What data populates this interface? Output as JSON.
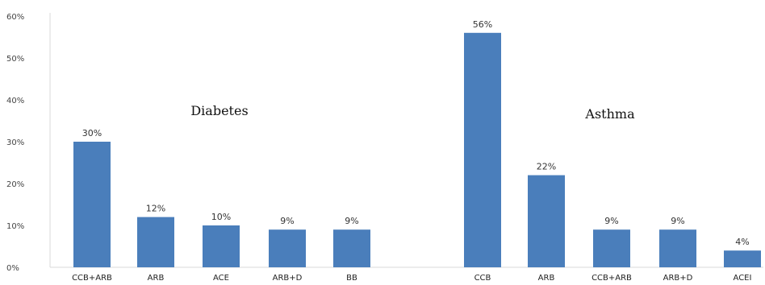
{
  "chart_data": {
    "type": "bar",
    "ylim": [
      0,
      60
    ],
    "yticks": [
      "0%",
      "10%",
      "20%",
      "30%",
      "40%",
      "50%",
      "60%"
    ],
    "bar_color": "#4a7ebb",
    "grid": false,
    "groups": [
      {
        "label": "Diabetes",
        "categories": [
          "CCB+ARB",
          "ARB",
          "ACE",
          "ARB+D",
          "BB"
        ],
        "values": [
          30,
          12,
          10,
          9,
          9
        ],
        "value_labels": [
          "30%",
          "12%",
          "10%",
          "9%",
          "9%"
        ]
      },
      {
        "label": "Asthma",
        "categories": [
          "CCB",
          "ARB",
          "CCB+ARB",
          "ARB+D",
          "ACEI"
        ],
        "values": [
          56,
          22,
          9,
          9,
          4
        ],
        "value_labels": [
          "56%",
          "22%",
          "9%",
          "9%",
          "4%"
        ]
      }
    ]
  }
}
